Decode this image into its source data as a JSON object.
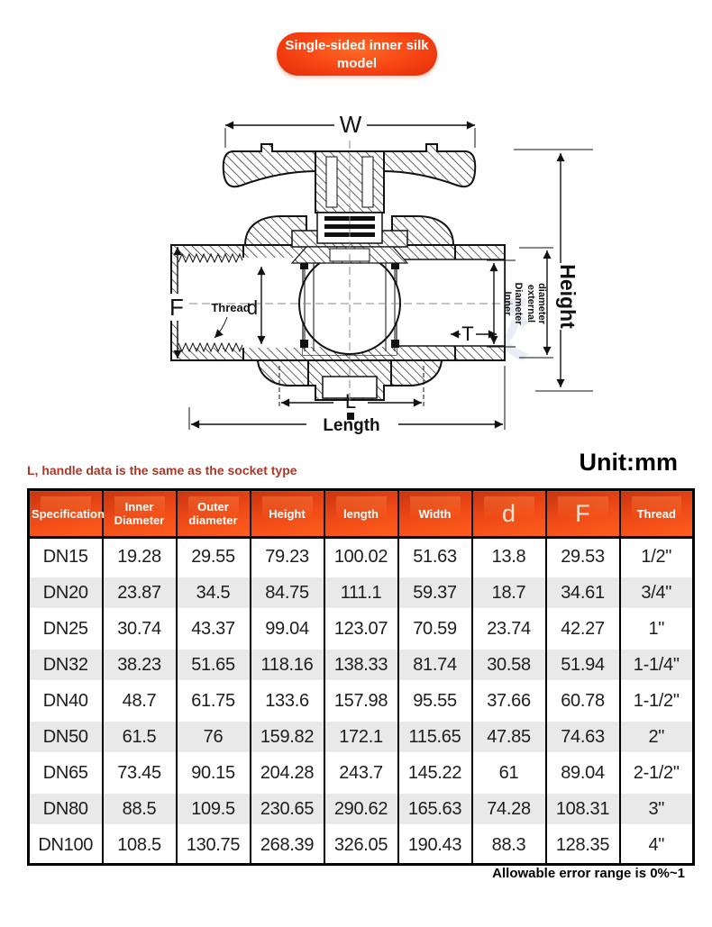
{
  "badge": {
    "line1": "Single-sided inner silk",
    "line2": "model"
  },
  "diagram": {
    "watermark": "戊牛塑胶",
    "labels": {
      "w": "W",
      "height": "Height",
      "f": "F",
      "thread": "Thread",
      "d": "d",
      "t": "T",
      "inner_d_line1": "Inner",
      "inner_d_line2": "Diameter",
      "ext_d_line1": "external",
      "ext_d_line2": "diameter",
      "l": "L",
      "length": "Length"
    }
  },
  "note": "L, handle data is the same as the socket type",
  "unit": "Unit:mm",
  "table": {
    "headers": [
      {
        "label": "Specification",
        "big": false
      },
      {
        "label": "Inner Diameter",
        "big": false
      },
      {
        "label": "Outer diameter",
        "big": false
      },
      {
        "label": "Height",
        "big": false
      },
      {
        "label": "length",
        "big": false
      },
      {
        "label": "Width",
        "big": false
      },
      {
        "label": "d",
        "big": true
      },
      {
        "label": "F",
        "big": true
      },
      {
        "label": "Thread",
        "big": false
      }
    ],
    "rows": [
      [
        "DN15",
        "19.28",
        "29.55",
        "79.23",
        "100.02",
        "51.63",
        "13.8",
        "29.53",
        "1/2\""
      ],
      [
        "DN20",
        "23.87",
        "34.5",
        "84.75",
        "111.1",
        "59.37",
        "18.7",
        "34.61",
        "3/4\""
      ],
      [
        "DN25",
        "30.74",
        "43.37",
        "99.04",
        "123.07",
        "70.59",
        "23.74",
        "42.27",
        "1\""
      ],
      [
        "DN32",
        "38.23",
        "51.65",
        "118.16",
        "138.33",
        "81.74",
        "30.58",
        "51.94",
        "1-1/4\""
      ],
      [
        "DN40",
        "48.7",
        "61.75",
        "133.6",
        "157.98",
        "95.55",
        "37.66",
        "60.78",
        "1-1/2\""
      ],
      [
        "DN50",
        "61.5",
        "76",
        "159.82",
        "172.1",
        "115.65",
        "47.85",
        "74.63",
        "2\""
      ],
      [
        "DN65",
        "73.45",
        "90.15",
        "204.28",
        "243.7",
        "145.22",
        "61",
        "89.04",
        "2-1/2\""
      ],
      [
        "DN80",
        "88.5",
        "109.5",
        "230.65",
        "290.62",
        "165.63",
        "74.28",
        "108.31",
        "3\""
      ],
      [
        "DN100",
        "108.5",
        "130.75",
        "268.39",
        "326.05",
        "190.43",
        "88.3",
        "128.35",
        "4\""
      ]
    ]
  },
  "footer": "Allowable error range is 0%~1",
  "colors": {
    "badge_red": "#f24312",
    "header_red_top": "#c93510",
    "header_red_bottom": "#ff5f1d",
    "note_red": "#a9382a",
    "row_alt_gray": "#e9e9e9",
    "watermark_blue": "#c6cde6"
  }
}
